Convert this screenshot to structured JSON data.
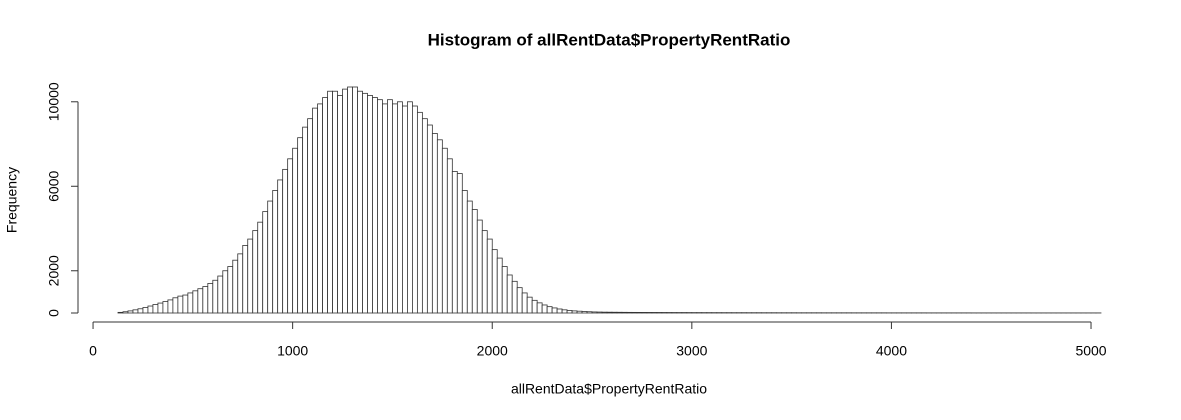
{
  "chart_data": {
    "type": "histogram",
    "title": "Histogram of allRentData$PropertyRentRatio",
    "x_label": "allRentData$PropertyRentRatio",
    "y_label": "Frequency",
    "color": "#ffffff",
    "edge_color": "#333333",
    "bins": [
      125,
      150,
      175,
      200,
      225,
      250,
      275,
      300,
      325,
      350,
      375,
      400,
      425,
      450,
      475,
      500,
      525,
      550,
      575,
      600,
      625,
      650,
      675,
      700,
      725,
      750,
      775,
      800,
      825,
      850,
      875,
      900,
      925,
      950,
      975,
      1000,
      1025,
      1050,
      1075,
      1100,
      1125,
      1150,
      1175,
      1200,
      1225,
      1250,
      1275,
      1300,
      1325,
      1350,
      1375,
      1400,
      1425,
      1450,
      1475,
      1500,
      1525,
      1550,
      1575,
      1600,
      1625,
      1650,
      1675,
      1700,
      1725,
      1750,
      1775,
      1800,
      1825,
      1850,
      1875,
      1900,
      1925,
      1950,
      1975,
      2000,
      2025,
      2050,
      2075,
      2100,
      2125,
      2150,
      2175,
      2200,
      2225,
      2250,
      2275,
      2300,
      2325,
      2350,
      2375,
      2400,
      2425,
      2450,
      2475,
      2500,
      2525,
      2550,
      2575,
      2600,
      2625,
      2650,
      2675,
      2700,
      2725,
      2750,
      2775,
      2800,
      2825,
      2850,
      2875,
      2900,
      2925,
      2950,
      2975,
      3000,
      3025,
      3050,
      3075,
      3100,
      3125,
      3150,
      3175,
      3200,
      3225,
      3250,
      3275,
      3300,
      3325,
      3350,
      3375,
      3400,
      3425,
      3450,
      3475,
      3500,
      3525,
      3550,
      3575,
      3600,
      3625,
      3650,
      3675,
      3700,
      3725,
      3750,
      3775,
      3800,
      3825,
      3850,
      3875,
      3900,
      3925,
      3950,
      3975,
      4000,
      4025,
      4050,
      4075,
      4100,
      4125,
      4150,
      4175,
      4200,
      4225,
      4250,
      4275,
      4300,
      4325,
      4350,
      4375,
      4400,
      4425,
      4450,
      4475,
      4500,
      4525,
      4550,
      4575,
      4600,
      4625,
      4650,
      4675,
      4700,
      4725,
      4750,
      4775,
      4800,
      4825,
      4850,
      4875,
      4900,
      4925,
      4950,
      4975,
      5000,
      5025,
      5050
    ],
    "values": [
      30,
      60,
      100,
      150,
      200,
      260,
      330,
      400,
      470,
      540,
      620,
      720,
      800,
      850,
      950,
      1050,
      1150,
      1250,
      1400,
      1550,
      1750,
      2000,
      2200,
      2500,
      2800,
      3200,
      3500,
      3900,
      4300,
      4800,
      5300,
      5800,
      6300,
      6800,
      7300,
      7800,
      8300,
      8800,
      9200,
      9700,
      9900,
      10200,
      10500,
      10500,
      10300,
      10600,
      10700,
      10700,
      10500,
      10400,
      10300,
      10200,
      10100,
      9900,
      10100,
      9900,
      10000,
      9800,
      10000,
      9800,
      9500,
      9200,
      8900,
      8500,
      8200,
      7800,
      7300,
      6700,
      6600,
      5800,
      5300,
      4900,
      4400,
      3900,
      3500,
      3000,
      2600,
      2200,
      1800,
      1500,
      1200,
      950,
      750,
      600,
      480,
      380,
      300,
      240,
      190,
      150,
      120,
      100,
      85,
      70,
      60,
      50,
      45,
      40,
      38,
      36,
      34,
      32,
      30,
      29,
      28,
      27,
      26,
      25,
      24,
      23,
      22,
      21,
      20,
      20,
      19,
      18,
      18,
      17,
      17,
      16,
      16,
      15,
      15,
      14,
      14,
      14,
      13,
      13,
      13,
      12,
      12,
      12,
      11,
      11,
      11,
      11,
      10,
      10,
      10,
      10,
      10,
      9,
      9,
      9,
      9,
      9,
      9,
      8,
      8,
      8,
      8,
      8,
      8,
      8,
      7,
      7,
      7,
      7,
      7,
      7,
      7,
      7,
      6,
      6,
      6,
      6,
      6,
      6,
      6,
      6,
      6,
      5,
      5,
      5,
      5,
      5,
      5,
      5,
      5,
      5,
      5,
      5,
      5,
      4,
      4,
      4,
      4,
      4,
      4,
      4,
      4,
      4,
      4,
      4,
      4,
      4,
      4
    ],
    "xlim": [
      125,
      5050
    ],
    "ylim": [
      0,
      10700
    ],
    "xticks": [
      0,
      1000,
      2000,
      3000,
      4000,
      5000
    ],
    "yticks": [
      0,
      2000,
      6000,
      10000
    ],
    "grid": false
  }
}
